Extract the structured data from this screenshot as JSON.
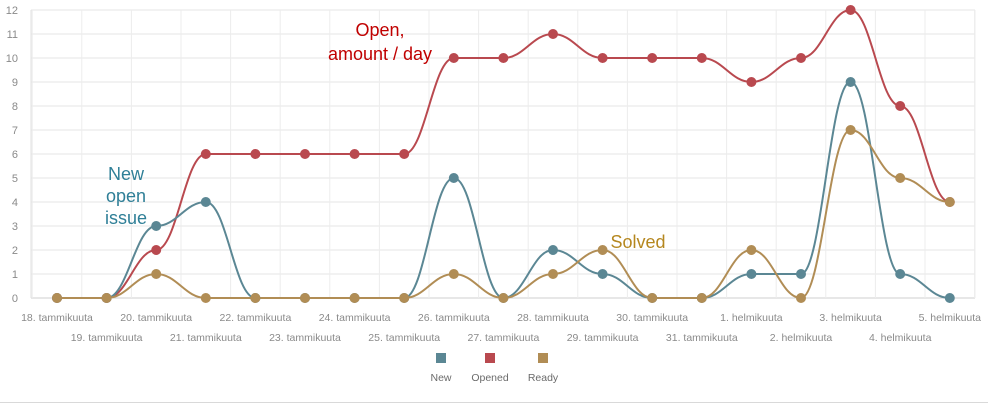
{
  "chart_data": {
    "type": "line",
    "categories": [
      "18. tammikuuta",
      "19. tammikuuta",
      "20. tammikuuta",
      "21. tammikuuta",
      "22. tammikuuta",
      "23. tammikuuta",
      "24. tammikuuta",
      "25. tammikuuta",
      "26. tammikuuta",
      "27. tammikuuta",
      "28. tammikuuta",
      "29. tammikuuta",
      "30. tammikuuta",
      "31. tammikuuta",
      "1. helmikuuta",
      "2. helmikuuta",
      "3. helmikuuta",
      "4. helmikuuta",
      "5. helmikuuta"
    ],
    "series": [
      {
        "name": "New",
        "color": "#5b8794",
        "values": [
          0,
          0,
          3,
          4,
          0,
          0,
          0,
          0,
          5,
          0,
          2,
          1,
          0,
          0,
          1,
          1,
          9,
          1,
          0
        ]
      },
      {
        "name": "Opened",
        "color": "#b9494f",
        "values": [
          0,
          0,
          2,
          6,
          6,
          6,
          6,
          6,
          10,
          10,
          11,
          10,
          10,
          10,
          9,
          10,
          12,
          8,
          4
        ]
      },
      {
        "name": "Ready",
        "color": "#b18d55",
        "values": [
          0,
          0,
          1,
          0,
          0,
          0,
          0,
          0,
          1,
          0,
          1,
          2,
          0,
          0,
          2,
          0,
          7,
          5,
          4
        ]
      }
    ],
    "ylim": [
      0,
      12
    ],
    "yticks": [
      0,
      1,
      2,
      3,
      4,
      5,
      6,
      7,
      8,
      9,
      10,
      11,
      12
    ],
    "grid": true,
    "legend_position": "bottom-center",
    "annotations": [
      {
        "lines": [
          "Open,",
          "amount / day"
        ],
        "color": "#c00000",
        "near_series": "Opened"
      },
      {
        "lines": [
          "New",
          "open",
          "issue"
        ],
        "color": "#2f7f97",
        "near_series": "New"
      },
      {
        "lines": [
          "Solved"
        ],
        "color": "#b5871f",
        "near_series": "Ready"
      }
    ]
  }
}
